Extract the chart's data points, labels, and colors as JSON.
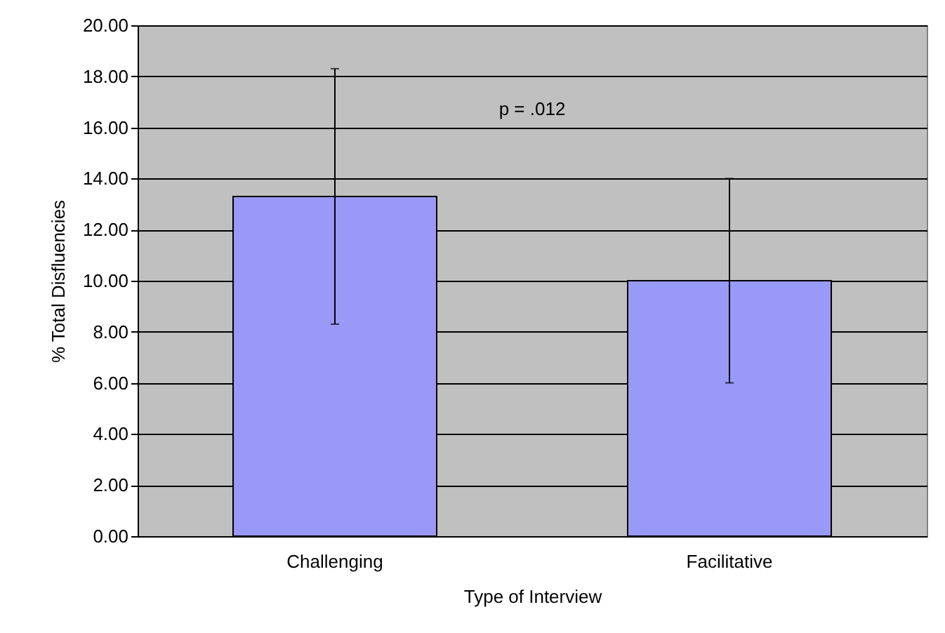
{
  "chart_data": {
    "type": "bar",
    "xlabel": "Type of Interview",
    "ylabel": "% Total Disfluencies",
    "categories": [
      "Challenging",
      "Facilitative"
    ],
    "values": [
      13.3,
      10.0
    ],
    "errors": [
      5.0,
      4.0
    ],
    "color": "#9999f8",
    "ylim": [
      0,
      20
    ],
    "yticks": [
      {
        "value": 0,
        "label": "0.00"
      },
      {
        "value": 2,
        "label": "2.00"
      },
      {
        "value": 4,
        "label": "4.00"
      },
      {
        "value": 6,
        "label": "6.00"
      },
      {
        "value": 8,
        "label": "8.00"
      },
      {
        "value": 10,
        "label": "10.00"
      },
      {
        "value": 12,
        "label": "12.00"
      },
      {
        "value": 14,
        "label": "14.00"
      },
      {
        "value": 16,
        "label": "16.00"
      },
      {
        "value": 18,
        "label": "18.00"
      },
      {
        "value": 20,
        "label": "20.00"
      }
    ],
    "grid": "y",
    "annotations": [
      "p = .012"
    ]
  }
}
